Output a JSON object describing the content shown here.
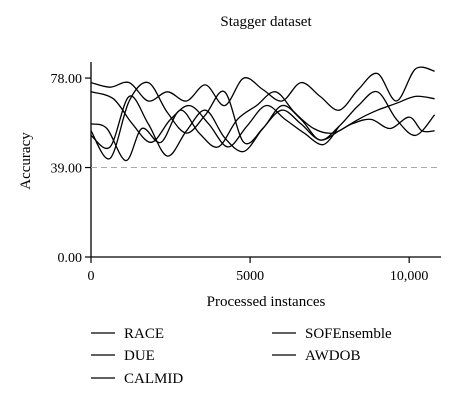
{
  "chart_data": {
    "type": "line",
    "title": "Stagger dataset",
    "xlabel": "Processed instances",
    "ylabel": "Accuracy",
    "xlim": [
      0,
      11000
    ],
    "ylim": [
      0,
      85
    ],
    "x_ticks": [
      {
        "value": 0,
        "label": "0"
      },
      {
        "value": 5000,
        "label": "5000"
      },
      {
        "value": 10000,
        "label": "10,000"
      }
    ],
    "y_ticks": [
      {
        "value": 0,
        "label": "0.00"
      },
      {
        "value": 39,
        "label": "39.00"
      },
      {
        "value": 78,
        "label": "78.00"
      }
    ],
    "reference_line": {
      "value": 39,
      "style": "dashed",
      "color": "#aaaaaa"
    },
    "line_color": "#000000",
    "legend_position": "bottom",
    "series": [
      {
        "name": "RACE",
        "x": [
          0,
          700,
          1300,
          1900,
          2500,
          3100,
          3700,
          4300,
          4900,
          5500,
          6100,
          6700,
          7300,
          7800
        ],
        "y": [
          72,
          69,
          58,
          50,
          60,
          66,
          58,
          48,
          57,
          66,
          60,
          54,
          49,
          57
        ]
      },
      {
        "name": "DUE",
        "x": [
          0,
          500,
          1100,
          1600,
          2200,
          2800,
          3400,
          4000,
          4600,
          5200,
          5800,
          6400,
          7000,
          7600,
          8200,
          8800,
          9400,
          10000,
          10400,
          10800
        ],
        "y": [
          58,
          56,
          42,
          56,
          50,
          64,
          54,
          48,
          60,
          66,
          72,
          63,
          56,
          54,
          58,
          60,
          56,
          61,
          55,
          55
        ]
      },
      {
        "name": "CALMID",
        "x": [
          0,
          600,
          1200,
          1800,
          2400,
          3000,
          3600,
          4200,
          4800,
          5400,
          6000,
          6600,
          7200,
          7800,
          8400,
          9000,
          9600,
          10200,
          10800
        ],
        "y": [
          53,
          48,
          70,
          58,
          44,
          55,
          64,
          52,
          46,
          56,
          64,
          58,
          51,
          55,
          60,
          64,
          67,
          70,
          69
        ]
      },
      {
        "name": "SOFEnsemble",
        "x": [
          0,
          600,
          1200,
          1800,
          2400,
          3000,
          3600,
          4200,
          4800,
          5400,
          6000,
          6600,
          7200,
          7800,
          8400,
          9000,
          9600,
          10200,
          10800
        ],
        "y": [
          55,
          43,
          68,
          76,
          63,
          54,
          62,
          72,
          50,
          56,
          66,
          60,
          51,
          57,
          66,
          72,
          60,
          53,
          62
        ]
      },
      {
        "name": "AWDOB",
        "x": [
          0,
          600,
          1200,
          1800,
          2400,
          3000,
          3600,
          4200,
          4800,
          5400,
          6000,
          6600,
          7200,
          7800,
          8400,
          9000,
          9600,
          10200,
          10800
        ],
        "y": [
          76,
          74,
          76,
          68,
          72,
          68,
          75,
          66,
          78,
          73,
          68,
          76,
          70,
          64,
          73,
          80,
          68,
          82,
          81
        ]
      }
    ]
  }
}
